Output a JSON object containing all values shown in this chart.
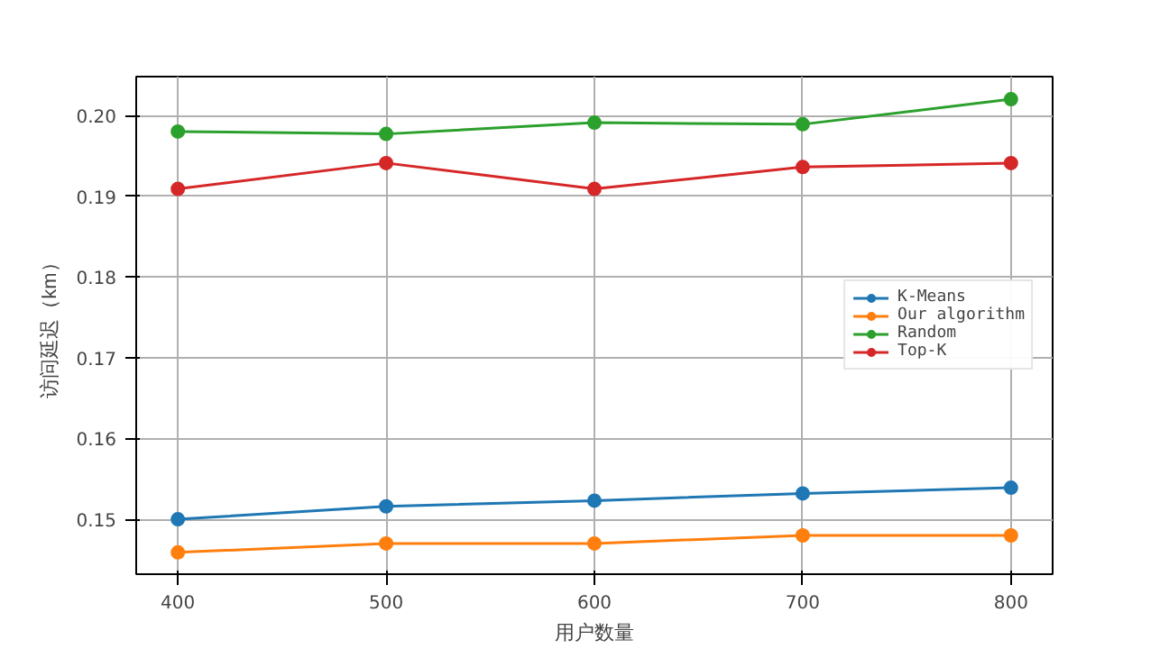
{
  "chart_data": {
    "type": "line",
    "xlabel": "用户数量",
    "ylabel": "访问延迟（km）",
    "x": [
      400,
      500,
      600,
      700,
      800
    ],
    "series": [
      {
        "name": "K-Means",
        "color": "#1f77b4",
        "values": [
          0.15,
          0.1516,
          0.1523,
          0.1532,
          0.1539
        ]
      },
      {
        "name": "Our algorithm",
        "color": "#ff7f0e",
        "values": [
          0.1459,
          0.147,
          0.147,
          0.148,
          0.148
        ]
      },
      {
        "name": "Random",
        "color": "#2ca02c",
        "values": [
          0.198,
          0.1977,
          0.1991,
          0.1989,
          0.202
        ]
      },
      {
        "name": "Top-K",
        "color": "#d62728",
        "values": [
          0.1909,
          0.1941,
          0.1909,
          0.1936,
          0.1941
        ]
      }
    ],
    "xlim": [
      380,
      820
    ],
    "ylim": [
      0.1432,
      0.2048
    ],
    "xticks": [
      400,
      500,
      600,
      700,
      800
    ],
    "yticks": [
      {
        "value": 0.15,
        "label": "0.15"
      },
      {
        "value": 0.16,
        "label": "0.16"
      },
      {
        "value": 0.17,
        "label": "0.17"
      },
      {
        "value": 0.18,
        "label": "0.18"
      },
      {
        "value": 0.19,
        "label": "0.19"
      },
      {
        "value": 0.2,
        "label": "0.20"
      }
    ],
    "grid": true,
    "legend": "right",
    "marker": "circle",
    "line_style": "solid"
  }
}
